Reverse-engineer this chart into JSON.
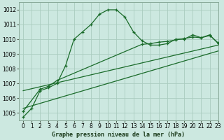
{
  "xlabel": "Graphe pression niveau de la mer (hPa)",
  "xlim": [
    -0.5,
    23
  ],
  "ylim": [
    1004.5,
    1012.5
  ],
  "yticks": [
    1005,
    1006,
    1007,
    1008,
    1009,
    1010,
    1011,
    1012
  ],
  "xticks": [
    0,
    1,
    2,
    3,
    4,
    5,
    6,
    7,
    8,
    9,
    10,
    11,
    12,
    13,
    14,
    15,
    16,
    17,
    18,
    19,
    20,
    21,
    22,
    23
  ],
  "background_color": "#cce8e0",
  "grid_color": "#aaccbf",
  "line_color": "#1a6b2a",
  "line1_x": [
    0,
    1,
    2,
    3,
    4,
    5,
    6,
    7,
    8,
    9,
    10,
    11,
    12,
    13,
    14,
    15,
    16,
    17,
    18,
    19,
    20,
    21,
    22,
    23
  ],
  "line1_y": [
    1004.7,
    1005.3,
    1006.5,
    1006.7,
    1007.0,
    1008.2,
    1010.0,
    1010.5,
    1011.0,
    1011.7,
    1012.0,
    1012.0,
    1011.5,
    1010.5,
    1009.9,
    1009.6,
    1009.6,
    1009.7,
    1010.0,
    1010.0,
    1010.3,
    1010.1,
    1010.3,
    1009.7
  ],
  "line2_x": [
    0,
    2,
    3,
    4,
    14,
    15,
    16,
    17,
    18,
    19,
    20,
    21,
    22,
    23
  ],
  "line2_y": [
    1005.1,
    1006.6,
    1006.8,
    1007.2,
    1009.65,
    1009.7,
    1009.8,
    1009.85,
    1009.95,
    1010.05,
    1010.15,
    1010.1,
    1010.25,
    1009.75
  ],
  "line3_x": [
    0,
    23
  ],
  "line3_y": [
    1005.3,
    1009.2
  ],
  "line4_x": [
    0,
    23
  ],
  "line4_y": [
    1006.5,
    1009.6
  ],
  "marker": "+",
  "markersize": 3.5,
  "linewidth": 0.9,
  "tick_fontsize": 5.5,
  "xlabel_fontsize": 6.0
}
